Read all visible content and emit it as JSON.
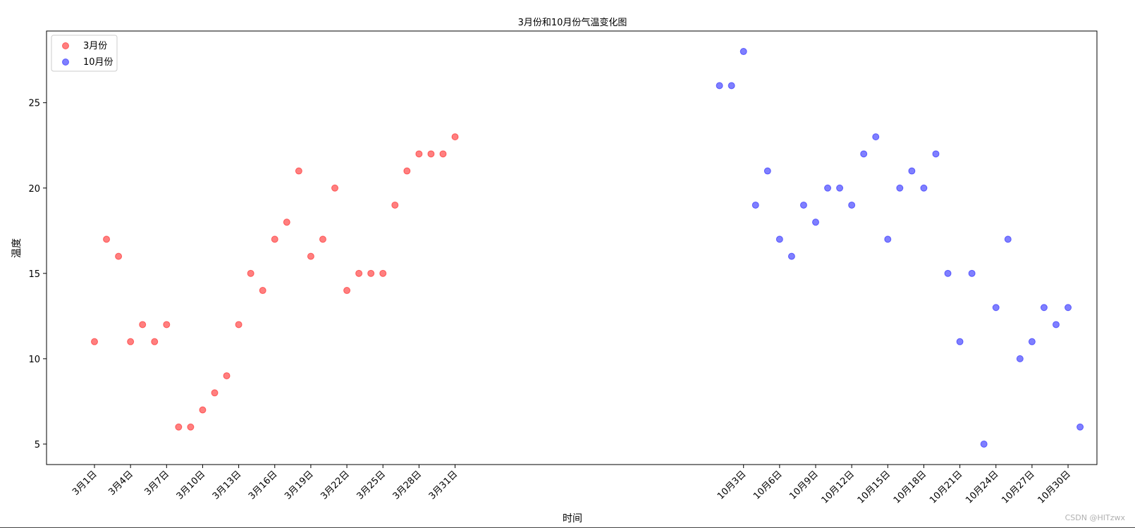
{
  "chart_data": {
    "type": "scatter",
    "title": "3月份和10月份气温变化图",
    "xlabel": "时间",
    "ylabel": "温度",
    "ylim": [
      3.8,
      29.2
    ],
    "yticks": [
      5,
      10,
      15,
      20,
      25
    ],
    "grid": false,
    "legend_position": "top-left",
    "series": [
      {
        "name": "3月份",
        "color": "#ff0000",
        "x": [
          "3月1日",
          "3月2日",
          "3月3日",
          "3月4日",
          "3月5日",
          "3月6日",
          "3月7日",
          "3月8日",
          "3月9日",
          "3月10日",
          "3月11日",
          "3月12日",
          "3月13日",
          "3月14日",
          "3月15日",
          "3月16日",
          "3月17日",
          "3月18日",
          "3月19日",
          "3月20日",
          "3月21日",
          "3月22日",
          "3月23日",
          "3月24日",
          "3月25日",
          "3月26日",
          "3月27日",
          "3月28日",
          "3月29日",
          "3月30日",
          "3月31日"
        ],
        "values": [
          11,
          17,
          16,
          11,
          12,
          11,
          12,
          6,
          6,
          7,
          8,
          9,
          12,
          15,
          14,
          17,
          18,
          21,
          16,
          17,
          20,
          14,
          15,
          15,
          15,
          19,
          21,
          22,
          22,
          22,
          23
        ]
      },
      {
        "name": "10月份",
        "color": "#0000ff",
        "x": [
          "10月1日",
          "10月2日",
          "10月3日",
          "10月4日",
          "10月5日",
          "10月6日",
          "10月7日",
          "10月8日",
          "10月9日",
          "10月10日",
          "10月11日",
          "10月12日",
          "10月13日",
          "10月14日",
          "10月15日",
          "10月16日",
          "10月17日",
          "10月18日",
          "10月19日",
          "10月20日",
          "10月21日",
          "10月22日",
          "10月23日",
          "10月24日",
          "10月25日",
          "10月26日",
          "10月27日",
          "10月28日",
          "10月29日",
          "10月30日",
          "10月31日"
        ],
        "values": [
          26,
          26,
          28,
          19,
          21,
          17,
          16,
          19,
          18,
          20,
          20,
          19,
          22,
          23,
          17,
          20,
          21,
          20,
          22,
          15,
          11,
          15,
          5,
          13,
          17,
          10,
          11,
          13,
          12,
          13,
          6
        ]
      }
    ],
    "xtick_labels": [
      "3月1日",
      "3月4日",
      "3月7日",
      "3月10日",
      "3月13日",
      "3月16日",
      "3月19日",
      "3月22日",
      "3月25日",
      "3月28日",
      "3月31日",
      "10月3日",
      "10月6日",
      "10月9日",
      "10月12日",
      "10月15日",
      "10月18日",
      "10月21日",
      "10月24日",
      "10月27日",
      "10月30日"
    ]
  },
  "watermark": "CSDN @HITzwx"
}
